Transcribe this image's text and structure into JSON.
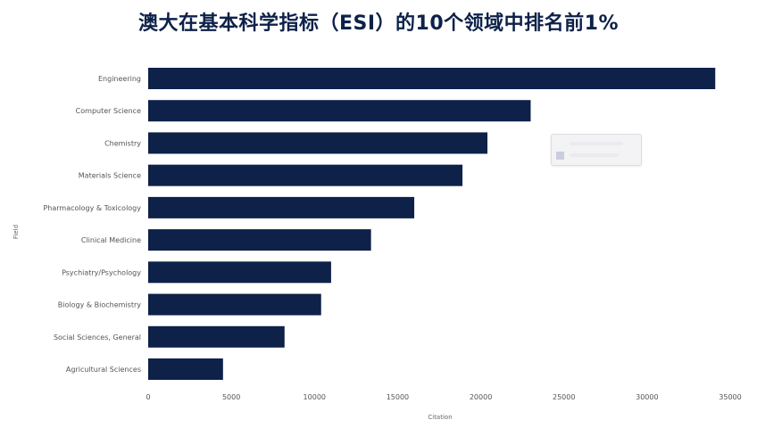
{
  "title": "澳大在基本科学指标（ESI）的10个领域中排名前1%",
  "chart_data": {
    "type": "bar",
    "orientation": "horizontal",
    "ylabel": "Field",
    "xlabel": "Citation",
    "xlim": [
      0,
      35000
    ],
    "xticks": [
      0,
      5000,
      10000,
      15000,
      20000,
      25000,
      30000,
      35000
    ],
    "categories": [
      "Engineering",
      "Computer Science",
      "Chemistry",
      "Materials Science",
      "Pharmacology & Toxicology",
      "Clinical Medicine",
      "Psychiatry/Psychology",
      "Biology & Biochemistry",
      "Social Sciences, General",
      "Agricultural Sciences"
    ],
    "values": [
      34100,
      23000,
      20400,
      18900,
      16000,
      13400,
      11000,
      10400,
      8200,
      4500
    ],
    "bar_color": "#0d2149",
    "grid": false
  }
}
